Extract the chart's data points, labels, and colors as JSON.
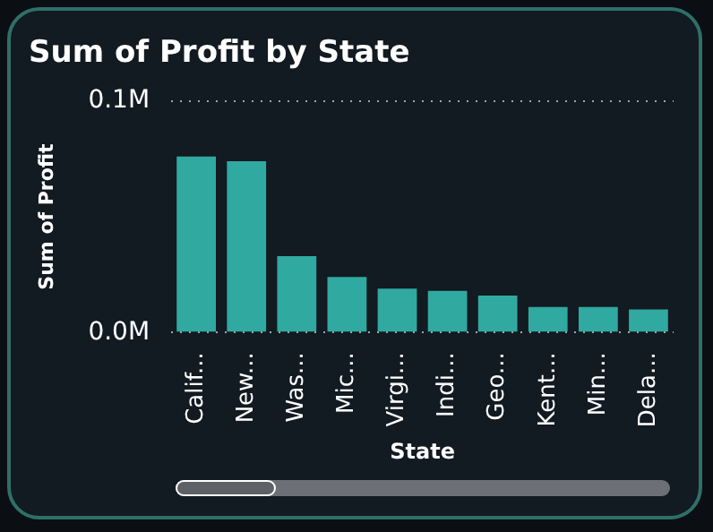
{
  "chart_data": {
    "type": "bar",
    "title": "Sum of Profit by State",
    "xlabel": "State",
    "ylabel": "Sum of Profit",
    "categories": [
      "Calif...",
      "New...",
      "Was...",
      "Mic...",
      "Virgi...",
      "Indi...",
      "Geo...",
      "Kent...",
      "Min...",
      "Dela..."
    ],
    "values": [
      0.076,
      0.074,
      0.033,
      0.024,
      0.019,
      0.018,
      0.016,
      0.011,
      0.011,
      0.01
    ],
    "color": "#30a9a1",
    "ylim": [
      0,
      0.1
    ],
    "yticks": [
      {
        "value": 0,
        "label": "0.0M"
      },
      {
        "value": 0.1,
        "label": "0.1M"
      }
    ],
    "grid": "y",
    "legend": false
  }
}
